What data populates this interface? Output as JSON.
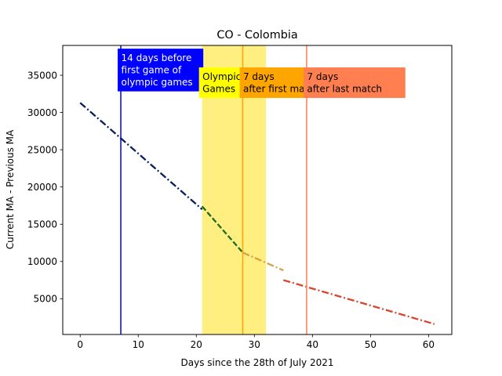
{
  "chart_data": {
    "type": "line",
    "title": "CO - Colombia",
    "xlabel": "Days since the 28th of July 2021",
    "ylabel": "Current MA - Previous MA",
    "xlim": [
      -3,
      64
    ],
    "ylim": [
      200,
      39000
    ],
    "xticks": [
      0,
      10,
      20,
      30,
      40,
      50,
      60
    ],
    "yticks": [
      5000,
      10000,
      15000,
      20000,
      25000,
      30000,
      35000
    ],
    "grid": false,
    "series": [
      {
        "x": [
          0,
          21
        ],
        "y": [
          31300,
          17000
        ],
        "color": "#0b1f5c",
        "style": "dashdot"
      },
      {
        "x": [
          21,
          28
        ],
        "y": [
          17400,
          11200
        ],
        "color": "#1e6b1e",
        "style": "dashed"
      },
      {
        "x": [
          28,
          35
        ],
        "y": [
          11200,
          8800
        ],
        "color": "#d4a04a",
        "style": "dashdot"
      },
      {
        "x": [
          35,
          61
        ],
        "y": [
          7500,
          1600
        ],
        "color": "#d9452b",
        "style": "dashdot"
      }
    ],
    "shaded_regions": [
      {
        "x0": 21,
        "x1": 32,
        "color": "#ffee80"
      }
    ],
    "vlines": [
      {
        "x": 7,
        "color": "#0000dd"
      },
      {
        "x": 28,
        "color": "#ffa500"
      },
      {
        "x": 39,
        "color": "#ff7f50"
      }
    ],
    "annotations": [
      {
        "x": 7,
        "y": 35700,
        "lines": [
          "14 days before",
          "first game of",
          "olympic games"
        ],
        "bg": "#0000ff",
        "fg": "#ffffff",
        "x_end": 21.2
      },
      {
        "x": 21,
        "y": 34000,
        "lines": [
          "Olympic",
          "Games"
        ],
        "bg": "#ffff00",
        "fg": "#000000",
        "x_end": 28
      },
      {
        "x": 28,
        "y": 34000,
        "lines": [
          "7 days",
          "after first match"
        ],
        "bg": "#ffa500",
        "fg": "#000000",
        "x_end": 39
      },
      {
        "x": 39,
        "y": 34000,
        "lines": [
          "7 days",
          "after last match"
        ],
        "bg": "#ff7f50",
        "fg": "#000000",
        "x_end": 56
      }
    ]
  }
}
